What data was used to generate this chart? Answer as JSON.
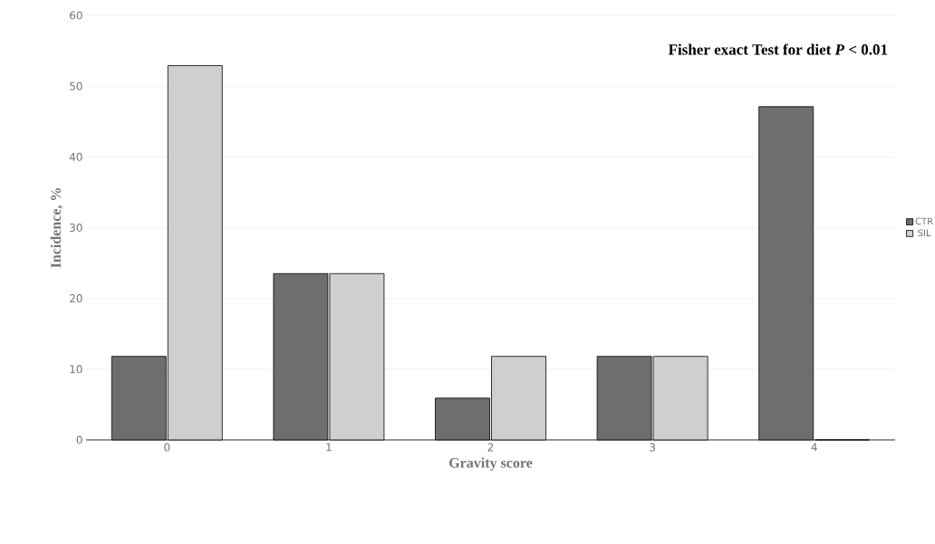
{
  "chart_data": {
    "type": "bar",
    "xlabel": "Gravity score",
    "ylabel": "Incidence, %",
    "categories": [
      "0",
      "1",
      "2",
      "3",
      "4"
    ],
    "series": [
      {
        "name": "CTR",
        "color": "#6e6e6e",
        "values": [
          11.8,
          23.5,
          5.9,
          11.8,
          47.1
        ]
      },
      {
        "name": "SIL",
        "color": "#cfcfcf",
        "values": [
          52.9,
          23.5,
          11.8,
          11.8,
          0
        ]
      }
    ],
    "ylim": [
      0,
      60
    ],
    "yticks": [
      0,
      10,
      20,
      30,
      40,
      50,
      60
    ],
    "grid": "y",
    "legend": "right",
    "annotations": [
      "Fisher exact Test for diet *P* < 0.01"
    ]
  }
}
